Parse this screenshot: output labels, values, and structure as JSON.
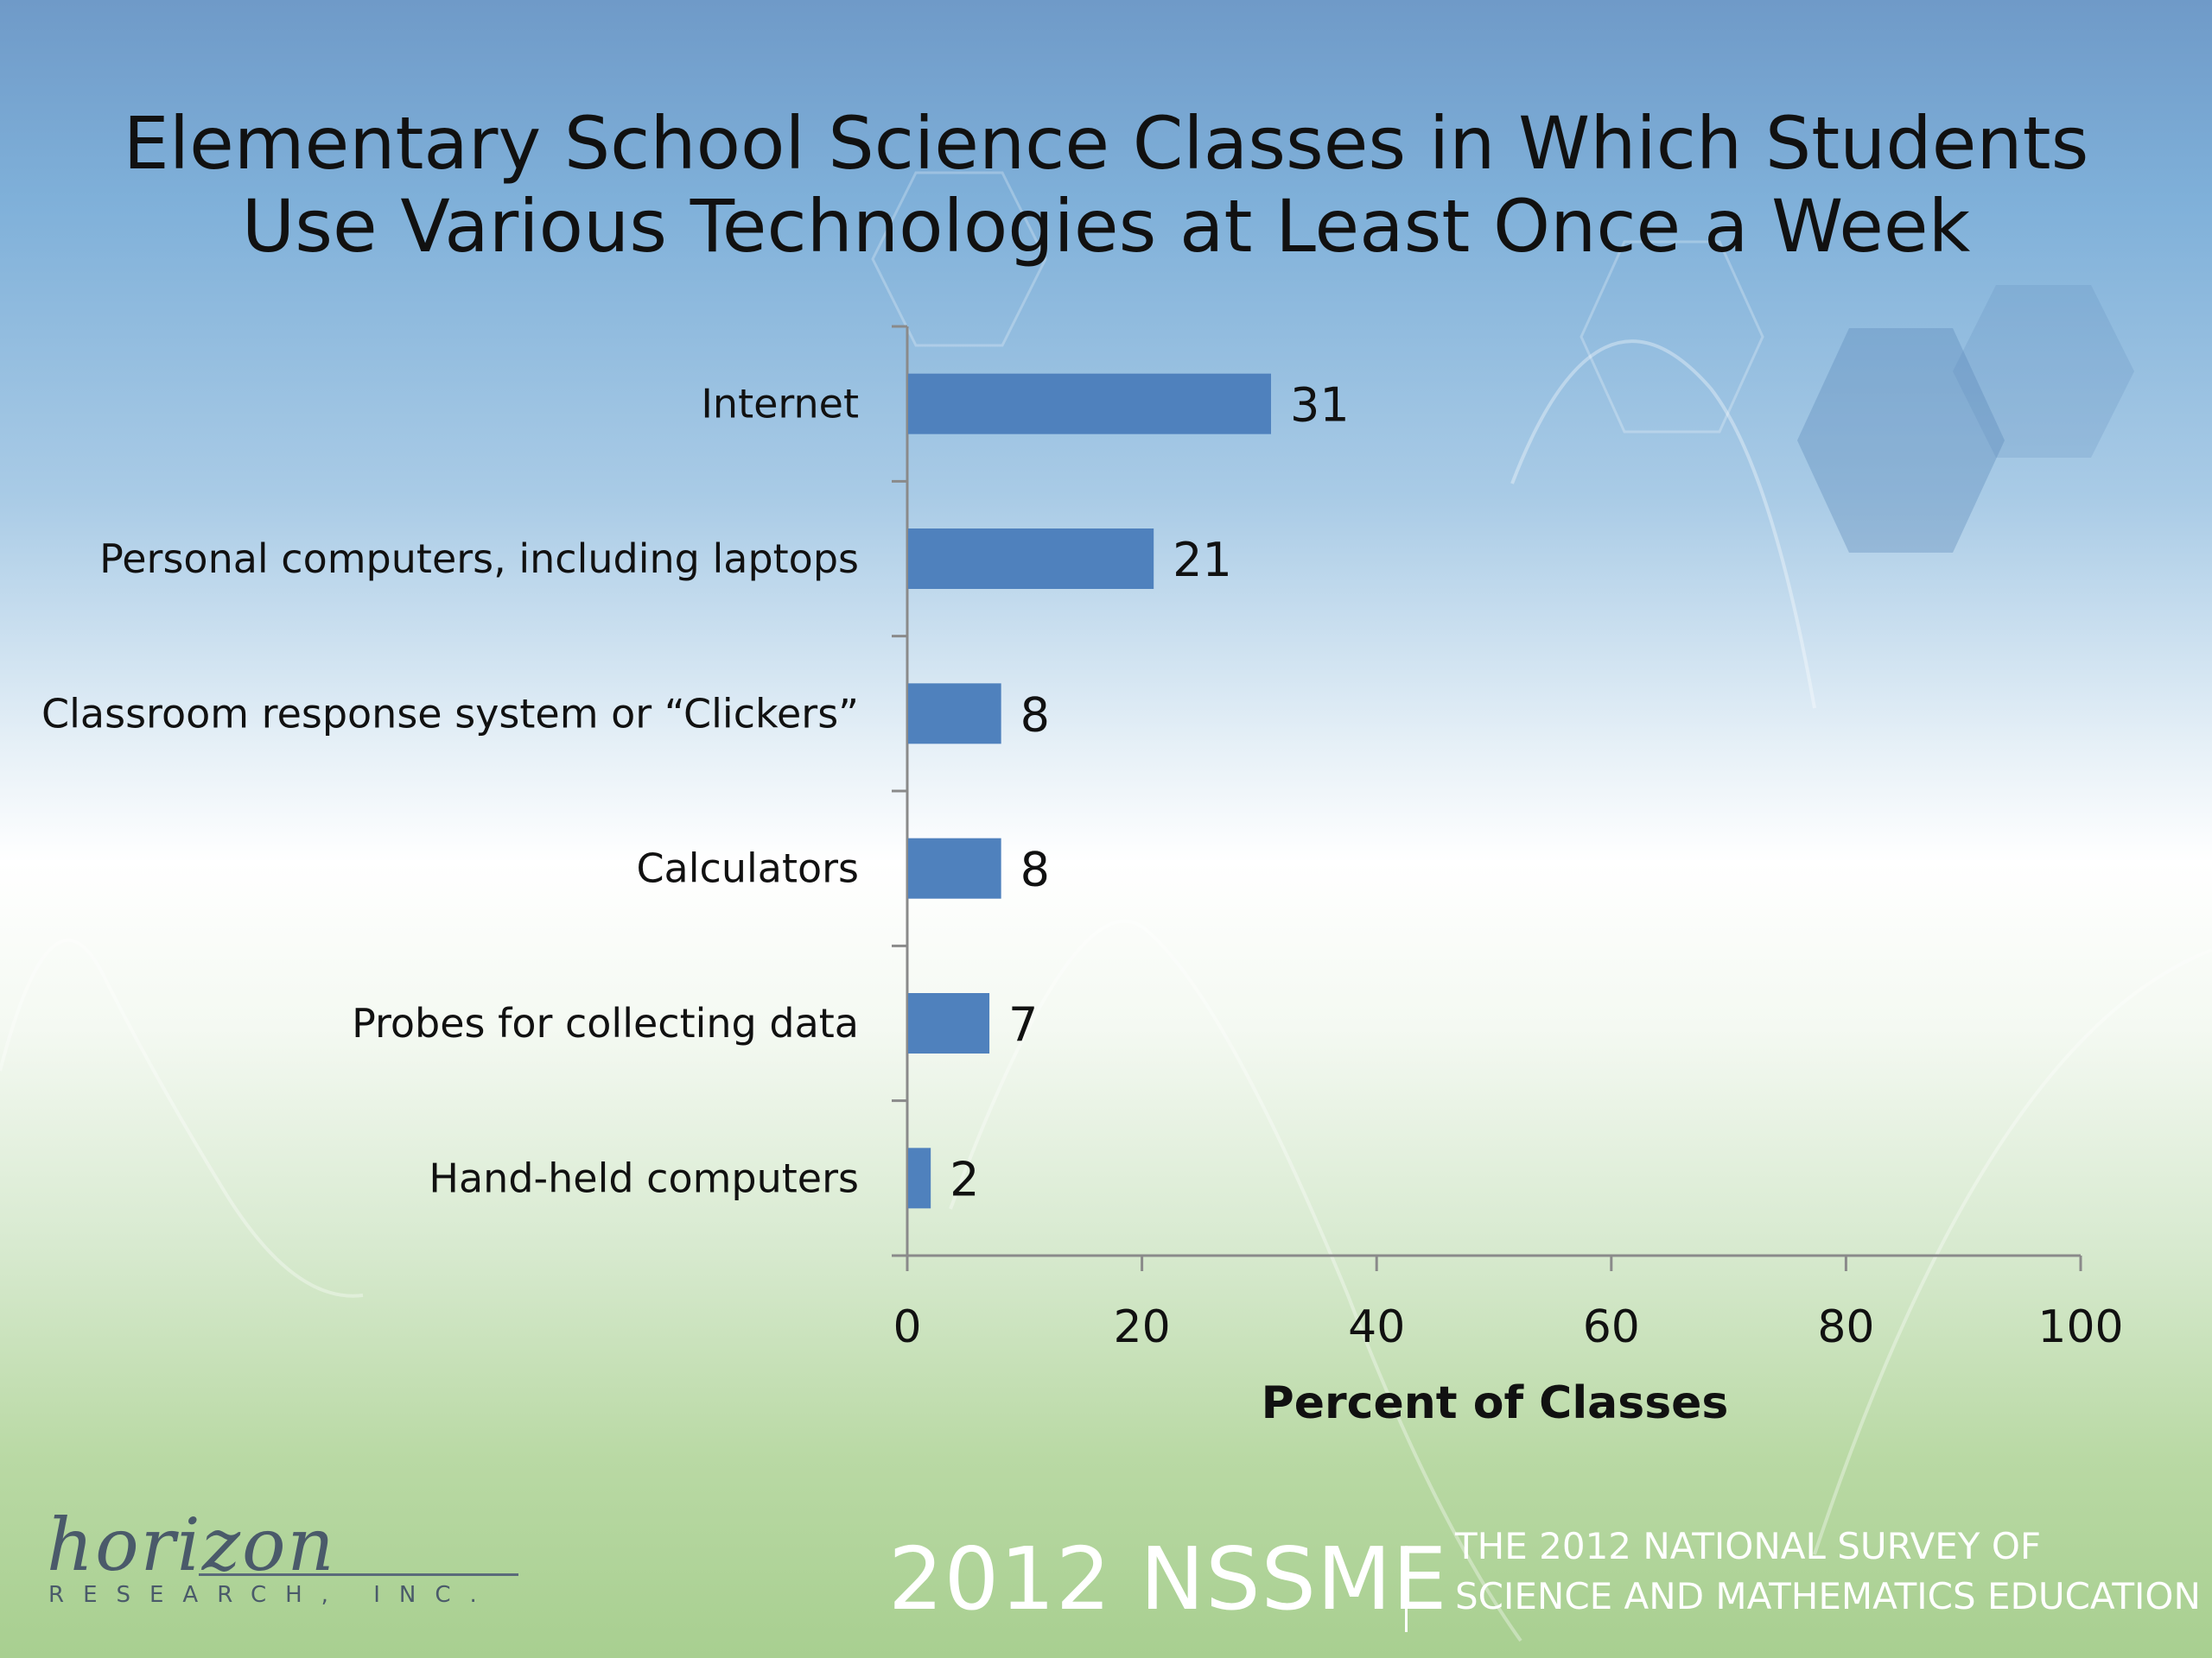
{
  "slide": {
    "title_line1": "Elementary School Science Classes in Which Students",
    "title_line2": "Use Various Technologies at Least Once a Week"
  },
  "chart_data": {
    "type": "bar",
    "orientation": "horizontal",
    "categories": [
      "Internet",
      "Personal computers, including laptops",
      "Classroom response system or “Clickers”",
      "Calculators",
      "Probes for collecting data",
      "Hand-held computers"
    ],
    "values": [
      31,
      21,
      8,
      8,
      7,
      2
    ],
    "xlabel": "Percent of Classes",
    "ylabel": "",
    "xlim": [
      0,
      100
    ],
    "xticks": [
      "0",
      "20",
      "40",
      "60",
      "80",
      "100"
    ],
    "bar_color": "#4f81bd",
    "grid": false,
    "legend": "none"
  },
  "footer": {
    "year_label": "2012 NSSME",
    "survey_line1": "THE 2012 NATIONAL SURVEY OF",
    "survey_line2": "SCIENCE AND MATHEMATICS EDUCATION",
    "logo_script": "horizon",
    "logo_sub": "RESEARCH, INC."
  }
}
